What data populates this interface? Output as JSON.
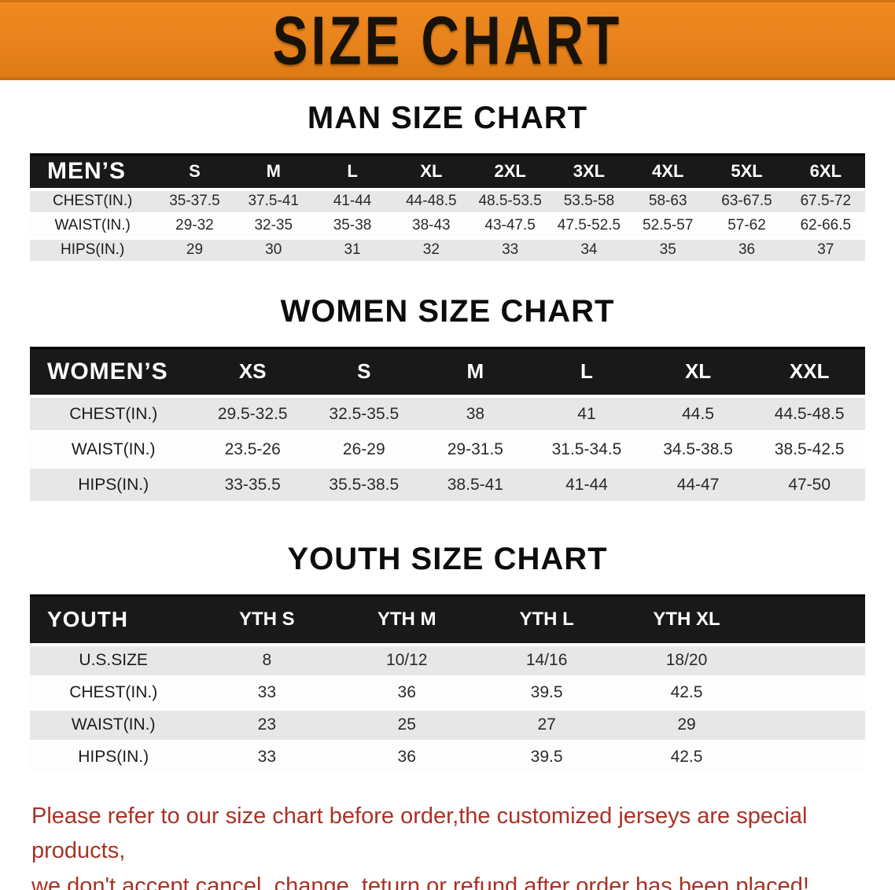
{
  "colors": {
    "accent_orange": "#e8821c",
    "table_header_black": "#191919",
    "row_shade_gray": "#e7e7e7",
    "note_red": "#a93226"
  },
  "banner": {
    "title": "SIZE CHART"
  },
  "sections": {
    "men": {
      "heading": "MAN SIZE CHART",
      "table": {
        "header_label": "MEN’S",
        "columns": [
          "S",
          "M",
          "L",
          "XL",
          "2XL",
          "3XL",
          "4XL",
          "5XL",
          "6XL"
        ],
        "rows": [
          {
            "label": "CHEST(IN.)",
            "values": [
              "35-37.5",
              "37.5-41",
              "41-44",
              "44-48.5",
              "48.5-53.5",
              "53.5-58",
              "58-63",
              "63-67.5",
              "67.5-72"
            ]
          },
          {
            "label": "WAIST(IN.)",
            "values": [
              "29-32",
              "32-35",
              "35-38",
              "38-43",
              "43-47.5",
              "47.5-52.5",
              "52.5-57",
              "57-62",
              "62-66.5"
            ]
          },
          {
            "label": "HIPS(IN.)",
            "values": [
              "29",
              "30",
              "31",
              "32",
              "33",
              "34",
              "35",
              "36",
              "37"
            ]
          }
        ]
      }
    },
    "women": {
      "heading": "WOMEN SIZE CHART",
      "table": {
        "header_label": "WOMEN’S",
        "columns": [
          "XS",
          "S",
          "M",
          "L",
          "XL",
          "XXL"
        ],
        "rows": [
          {
            "label": "CHEST(IN.)",
            "values": [
              "29.5-32.5",
              "32.5-35.5",
              "38",
              "41",
              "44.5",
              "44.5-48.5"
            ]
          },
          {
            "label": "WAIST(IN.)",
            "values": [
              "23.5-26",
              "26-29",
              "29-31.5",
              "31.5-34.5",
              "34.5-38.5",
              "38.5-42.5"
            ]
          },
          {
            "label": "HIPS(IN.)",
            "values": [
              "33-35.5",
              "35.5-38.5",
              "38.5-41",
              "41-44",
              "44-47",
              "47-50"
            ]
          }
        ]
      }
    },
    "youth": {
      "heading": "YOUTH SIZE CHART",
      "table": {
        "header_label": "YOUTH",
        "columns": [
          "YTH S",
          "YTH M",
          "YTH L",
          "YTH XL"
        ],
        "rows": [
          {
            "label": "U.S.SIZE",
            "values": [
              "8",
              "10/12",
              "14/16",
              "18/20"
            ]
          },
          {
            "label": "CHEST(IN.)",
            "values": [
              "33",
              "36",
              "39.5",
              "42.5"
            ]
          },
          {
            "label": "WAIST(IN.)",
            "values": [
              "23",
              "25",
              "27",
              "29"
            ]
          },
          {
            "label": "HIPS(IN.)",
            "values": [
              "33",
              "36",
              "39.5",
              "42.5"
            ]
          }
        ]
      }
    }
  },
  "note": {
    "line1": "Please refer to our size chart before order,the customized jerseys are special products,",
    "line2": "we don't accept cancel, change, teturn or refund after order has been placed!"
  }
}
